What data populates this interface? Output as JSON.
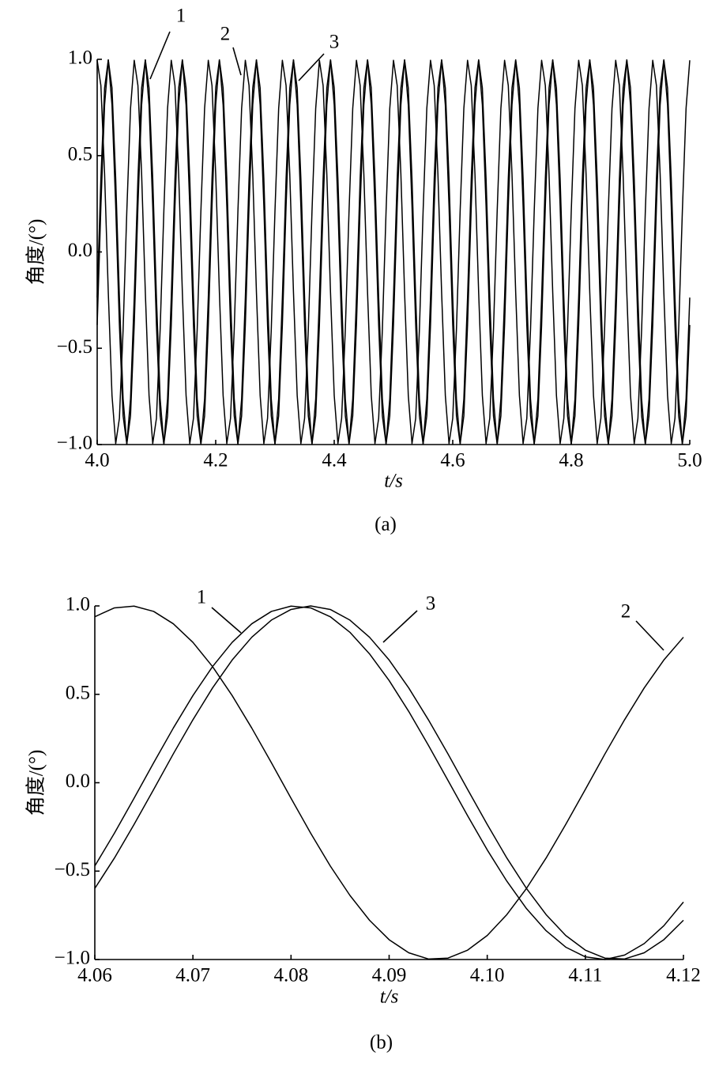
{
  "chart_data": [
    {
      "type": "line",
      "caption": "(a)",
      "xlabel": "t/s",
      "ylabel": "角度/(°)",
      "xlim": [
        4.0,
        5.0
      ],
      "ylim": [
        -1.0,
        1.0
      ],
      "xticks": [
        {
          "value": 4.0,
          "label": "4.0"
        },
        4.2,
        4.4,
        4.6,
        4.8,
        {
          "value": 5.0,
          "label": "5.0"
        }
      ],
      "yticks": [
        {
          "value": -1.0,
          "label": "−1.0"
        },
        {
          "value": -0.5,
          "label": "−0.5"
        },
        {
          "value": 0.0,
          "label": "0.0"
        },
        0.5,
        {
          "value": 1.0,
          "label": "1.0"
        }
      ],
      "x": [
        4,
        4.00625,
        4.0125,
        4.01875,
        4.025,
        4.03125,
        4.0375,
        4.04375,
        4.05,
        4.05625,
        4.0625,
        4.06875,
        4.075,
        4.08125,
        4.0875,
        4.09375,
        4.1,
        4.10625,
        4.1125,
        4.11875,
        4.125,
        4.13125,
        4.1375,
        4.14375,
        4.15,
        4.15625,
        4.1625,
        4.16875,
        4.175,
        4.18125,
        4.1875,
        4.19375,
        4.2,
        4.20625,
        4.2125,
        4.21875,
        4.225,
        4.23125,
        4.2375,
        4.24375,
        4.25,
        4.25625,
        4.2625,
        4.26875,
        4.275,
        4.28125,
        4.2875,
        4.29375,
        4.3,
        4.30625,
        4.3125,
        4.31875,
        4.325,
        4.33125,
        4.3375,
        4.34375,
        4.35,
        4.35625,
        4.3625,
        4.36875,
        4.375,
        4.38125,
        4.3875,
        4.39375,
        4.4,
        4.40625,
        4.4125,
        4.41875,
        4.425,
        4.43125,
        4.4375,
        4.44375,
        4.45,
        4.45625,
        4.4625,
        4.46875,
        4.475,
        4.48125,
        4.4875,
        4.49375,
        4.5,
        4.50625,
        4.5125,
        4.51875,
        4.525,
        4.53125,
        4.5375,
        4.54375,
        4.55,
        4.55625,
        4.5625,
        4.56875,
        4.575,
        4.58125,
        4.5875,
        4.59375,
        4.6,
        4.60625,
        4.6125,
        4.61875,
        4.625,
        4.63125,
        4.6375,
        4.64375,
        4.65,
        4.65625,
        4.6625,
        4.66875,
        4.675,
        4.68125,
        4.6875,
        4.69375,
        4.7,
        4.70625,
        4.7125,
        4.71875,
        4.725,
        4.73125,
        4.7375,
        4.74375,
        4.75,
        4.75625,
        4.7625,
        4.76875,
        4.775,
        4.78125,
        4.7875,
        4.79375,
        4.8,
        4.80625,
        4.8125,
        4.81875,
        4.825,
        4.83125,
        4.8375,
        4.84375,
        4.85,
        4.85625,
        4.8625,
        4.86875,
        4.875,
        4.88125,
        4.8875,
        4.89375,
        4.9,
        4.90625,
        4.9125,
        4.91875,
        4.925,
        4.93125,
        4.9375,
        4.94375,
        4.95,
        4.95625,
        4.9625,
        4.96875,
        4.975,
        4.98125,
        4.9875,
        4.99375,
        5
      ],
      "series": [
        {
          "name": "1",
          "color": "#000000",
          "values": [
            -0.237,
            0.379,
            0.851,
            0.997,
            0.763,
            0.237,
            -0.379,
            -0.851,
            -0.997,
            -0.763,
            -0.237,
            0.379,
            0.851,
            0.997,
            0.763,
            0.237,
            -0.379,
            -0.851,
            -0.997,
            -0.763,
            -0.237,
            0.379,
            0.851,
            0.997,
            0.763,
            0.237,
            -0.379,
            -0.851,
            -0.997,
            -0.763,
            -0.237,
            0.379,
            0.851,
            0.997,
            0.763,
            0.237,
            -0.379,
            -0.851,
            -0.997,
            -0.763,
            -0.237,
            0.379,
            0.851,
            0.997,
            0.763,
            0.237,
            -0.379,
            -0.851,
            -0.997,
            -0.763,
            -0.237,
            0.379,
            0.851,
            0.997,
            0.763,
            0.237,
            -0.379,
            -0.851,
            -0.997,
            -0.763,
            -0.237,
            0.379,
            0.851,
            0.997,
            0.763,
            0.237,
            -0.379,
            -0.851,
            -0.997,
            -0.763,
            -0.237,
            0.379,
            0.851,
            0.997,
            0.763,
            0.237,
            -0.379,
            -0.851,
            -0.997,
            -0.763,
            -0.237,
            0.379,
            0.851,
            0.997,
            0.763,
            0.237,
            -0.379,
            -0.851,
            -0.997,
            -0.763,
            -0.237,
            0.379,
            0.851,
            0.997,
            0.763,
            0.237,
            -0.379,
            -0.851,
            -0.997,
            -0.763,
            -0.237,
            0.379,
            0.851,
            0.997,
            0.763,
            0.237,
            -0.379,
            -0.851,
            -0.997,
            -0.763,
            -0.237,
            0.379,
            0.851,
            0.997,
            0.763,
            0.237,
            -0.379,
            -0.851,
            -0.997,
            -0.763,
            -0.237,
            0.379,
            0.851,
            0.997,
            0.763,
            0.237,
            -0.379,
            -0.851,
            -0.997,
            -0.763,
            -0.237,
            0.379,
            0.851,
            0.997,
            0.763,
            0.237,
            -0.379,
            -0.851,
            -0.997,
            -0.763,
            -0.237,
            0.379,
            0.851,
            0.997,
            0.763,
            0.237,
            -0.379,
            -0.851,
            -0.997,
            -0.763,
            -0.237,
            0.379,
            0.851,
            0.997,
            0.763,
            0.237,
            -0.379,
            -0.851,
            -0.997,
            -0.763,
            -0.237
          ]
        },
        {
          "name": "2",
          "color": "#000000",
          "values": [
            0.995,
            0.864,
            0.404,
            -0.211,
            -0.745,
            -0.995,
            -0.864,
            -0.404,
            0.211,
            0.745,
            0.995,
            0.864,
            0.404,
            -0.211,
            -0.745,
            -0.995,
            -0.864,
            -0.404,
            0.211,
            0.745,
            0.995,
            0.864,
            0.404,
            -0.211,
            -0.745,
            -0.995,
            -0.864,
            -0.404,
            0.211,
            0.745,
            0.995,
            0.864,
            0.404,
            -0.211,
            -0.745,
            -0.995,
            -0.864,
            -0.404,
            0.211,
            0.745,
            0.995,
            0.864,
            0.404,
            -0.211,
            -0.745,
            -0.995,
            -0.864,
            -0.404,
            0.211,
            0.745,
            0.995,
            0.864,
            0.404,
            -0.211,
            -0.745,
            -0.995,
            -0.864,
            -0.404,
            0.211,
            0.745,
            0.995,
            0.864,
            0.404,
            -0.211,
            -0.745,
            -0.995,
            -0.864,
            -0.404,
            0.211,
            0.745,
            0.995,
            0.864,
            0.404,
            -0.211,
            -0.745,
            -0.995,
            -0.864,
            -0.404,
            0.211,
            0.745,
            0.995,
            0.864,
            0.404,
            -0.211,
            -0.745,
            -0.995,
            -0.864,
            -0.404,
            0.211,
            0.745,
            0.995,
            0.864,
            0.404,
            -0.211,
            -0.745,
            -0.995,
            -0.864,
            -0.404,
            0.211,
            0.745,
            0.995,
            0.864,
            0.404,
            -0.211,
            -0.745,
            -0.995,
            -0.864,
            -0.404,
            0.211,
            0.745,
            0.995,
            0.864,
            0.404,
            -0.211,
            -0.745,
            -0.995,
            -0.864,
            -0.404,
            0.211,
            0.745,
            0.995,
            0.864,
            0.404,
            -0.211,
            -0.745,
            -0.995,
            -0.864,
            -0.404,
            0.211,
            0.745,
            0.995,
            0.864,
            0.404,
            -0.211,
            -0.745,
            -0.995,
            -0.864,
            -0.404,
            0.211,
            0.745,
            0.995,
            0.864,
            0.404,
            -0.211,
            -0.745,
            -0.995,
            -0.864,
            -0.404,
            0.211,
            0.745,
            0.995,
            0.864,
            0.404,
            -0.211,
            -0.745,
            -0.995,
            -0.864,
            -0.404,
            0.211,
            0.745,
            0.995
          ]
        },
        {
          "name": "3",
          "color": "#000000",
          "values": [
            -0.379,
            0.237,
            0.763,
            0.997,
            0.851,
            0.379,
            -0.237,
            -0.763,
            -0.997,
            -0.851,
            -0.379,
            0.237,
            0.763,
            0.997,
            0.851,
            0.379,
            -0.237,
            -0.763,
            -0.997,
            -0.851,
            -0.379,
            0.237,
            0.763,
            0.997,
            0.851,
            0.379,
            -0.237,
            -0.763,
            -0.997,
            -0.851,
            -0.379,
            0.237,
            0.763,
            0.997,
            0.851,
            0.379,
            -0.237,
            -0.763,
            -0.997,
            -0.851,
            -0.379,
            0.237,
            0.763,
            0.997,
            0.851,
            0.379,
            -0.237,
            -0.763,
            -0.997,
            -0.851,
            -0.379,
            0.237,
            0.763,
            0.997,
            0.851,
            0.379,
            -0.237,
            -0.763,
            -0.997,
            -0.851,
            -0.379,
            0.237,
            0.763,
            0.997,
            0.851,
            0.379,
            -0.237,
            -0.763,
            -0.997,
            -0.851,
            -0.379,
            0.237,
            0.763,
            0.997,
            0.851,
            0.379,
            -0.237,
            -0.763,
            -0.997,
            -0.851,
            -0.379,
            0.237,
            0.763,
            0.997,
            0.851,
            0.379,
            -0.237,
            -0.763,
            -0.997,
            -0.851,
            -0.379,
            0.237,
            0.763,
            0.997,
            0.851,
            0.379,
            -0.237,
            -0.763,
            -0.997,
            -0.851,
            -0.379,
            0.237,
            0.763,
            0.997,
            0.851,
            0.379,
            -0.237,
            -0.763,
            -0.997,
            -0.851,
            -0.379,
            0.237,
            0.763,
            0.997,
            0.851,
            0.379,
            -0.237,
            -0.763,
            -0.997,
            -0.851,
            -0.379,
            0.237,
            0.763,
            0.997,
            0.851,
            0.379,
            -0.237,
            -0.763,
            -0.997,
            -0.851,
            -0.379,
            0.237,
            0.763,
            0.997,
            0.851,
            0.379,
            -0.237,
            -0.763,
            -0.997,
            -0.851,
            -0.379,
            0.237,
            0.763,
            0.997,
            0.851,
            0.379,
            -0.237,
            -0.763,
            -0.997,
            -0.851,
            -0.379,
            0.237,
            0.763,
            0.997,
            0.851,
            0.379,
            -0.237,
            -0.763,
            -0.997,
            -0.851,
            -0.379
          ]
        }
      ]
    },
    {
      "type": "line",
      "caption": "(b)",
      "xlabel": "t/s",
      "ylabel": "角度/(°)",
      "xlim": [
        4.06,
        4.12
      ],
      "ylim": [
        -1.0,
        1.0
      ],
      "xticks": [
        4.06,
        4.07,
        4.08,
        4.09,
        {
          "value": 4.1,
          "label": "4.10"
        },
        4.11,
        4.12
      ],
      "yticks": [
        {
          "value": -1.0,
          "label": "−1.0"
        },
        {
          "value": -0.5,
          "label": "−0.5"
        },
        {
          "value": 0.0,
          "label": "0.0"
        },
        0.5,
        {
          "value": 1.0,
          "label": "1.0"
        }
      ],
      "x": [
        4.06,
        4.062,
        4.064,
        4.066,
        4.068,
        4.07,
        4.072,
        4.074,
        4.076,
        4.078,
        4.08,
        4.082,
        4.084,
        4.086,
        4.088,
        4.09,
        4.092,
        4.094,
        4.096,
        4.098,
        4.1,
        4.102,
        4.104,
        4.106,
        4.108,
        4.11,
        4.112,
        4.114,
        4.116,
        4.118,
        4.12
      ],
      "series": [
        {
          "name": "1",
          "color": "#000000",
          "values": [
            -0.471,
            -0.285,
            -0.088,
            0.113,
            0.309,
            0.493,
            0.657,
            0.794,
            0.899,
            0.969,
            0.999,
            0.989,
            0.939,
            0.851,
            0.729,
            0.578,
            0.403,
            0.212,
            0.013,
            -0.187,
            -0.38,
            -0.557,
            -0.712,
            -0.837,
            -0.93,
            -0.985,
            -1.0,
            -0.975,
            -0.91,
            -0.809,
            -0.675
          ]
        },
        {
          "name": "2",
          "color": "#000000",
          "values": [
            0.939,
            0.989,
            0.999,
            0.969,
            0.899,
            0.794,
            0.657,
            0.493,
            0.309,
            0.113,
            -0.088,
            -0.285,
            -0.471,
            -0.637,
            -0.778,
            -0.888,
            -0.962,
            -0.997,
            -0.992,
            -0.947,
            -0.864,
            -0.746,
            -0.598,
            -0.426,
            -0.236,
            -0.038,
            0.163,
            0.356,
            0.536,
            0.694,
            0.823
          ]
        },
        {
          "name": "3",
          "color": "#000000",
          "values": [
            -0.598,
            -0.426,
            -0.236,
            -0.038,
            0.163,
            0.356,
            0.536,
            0.694,
            0.823,
            0.92,
            0.98,
            1.0,
            0.98,
            0.92,
            0.823,
            0.694,
            0.536,
            0.356,
            0.163,
            -0.038,
            -0.236,
            -0.426,
            -0.598,
            -0.746,
            -0.864,
            -0.947,
            -0.992,
            -0.997,
            -0.962,
            -0.888,
            -0.778
          ]
        }
      ]
    }
  ]
}
